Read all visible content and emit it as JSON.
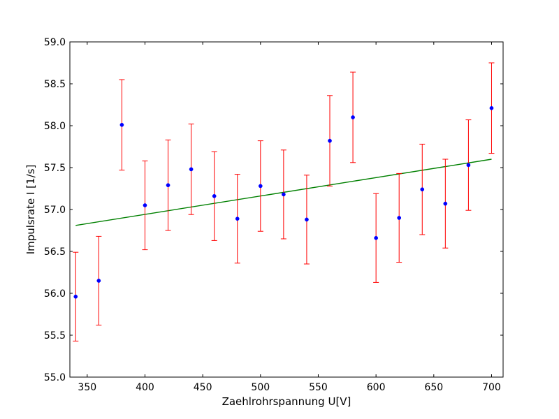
{
  "chart_data": {
    "type": "scatter",
    "title": "",
    "xlabel": "Zaehlrohrspannung U[V]",
    "ylabel": "Impulsrate I [1/s]",
    "xlim": [
      335,
      710
    ],
    "ylim": [
      55.0,
      59.0
    ],
    "grid": false,
    "x_ticks": [
      350,
      400,
      450,
      500,
      550,
      600,
      650,
      700
    ],
    "x_tick_labels": [
      "350",
      "400",
      "450",
      "500",
      "550",
      "600",
      "650",
      "700"
    ],
    "y_ticks": [
      55.0,
      55.5,
      56.0,
      56.5,
      57.0,
      57.5,
      58.0,
      58.5,
      59.0
    ],
    "y_tick_labels": [
      "55.0",
      "55.5",
      "56.0",
      "56.5",
      "57.0",
      "57.5",
      "58.0",
      "58.5",
      "59.0"
    ],
    "series": [
      {
        "kind": "points_with_errorbars",
        "color": "#0000ff",
        "errorbar_color": "#ff0000",
        "x": [
          340,
          360,
          380,
          400,
          420,
          440,
          460,
          480,
          500,
          520,
          540,
          560,
          580,
          600,
          620,
          640,
          660,
          680,
          700
        ],
        "y": [
          55.96,
          56.15,
          58.01,
          57.05,
          57.29,
          57.48,
          57.16,
          56.89,
          57.28,
          57.18,
          56.88,
          57.82,
          58.1,
          56.66,
          56.9,
          57.24,
          57.07,
          57.53,
          58.21
        ],
        "yerr": [
          0.53,
          0.53,
          0.54,
          0.53,
          0.54,
          0.54,
          0.53,
          0.53,
          0.54,
          0.53,
          0.53,
          0.54,
          0.54,
          0.53,
          0.53,
          0.54,
          0.53,
          0.54,
          0.54
        ]
      },
      {
        "kind": "fit_line",
        "color": "#008000",
        "x": [
          340,
          700
        ],
        "y": [
          56.81,
          57.6
        ]
      }
    ]
  }
}
